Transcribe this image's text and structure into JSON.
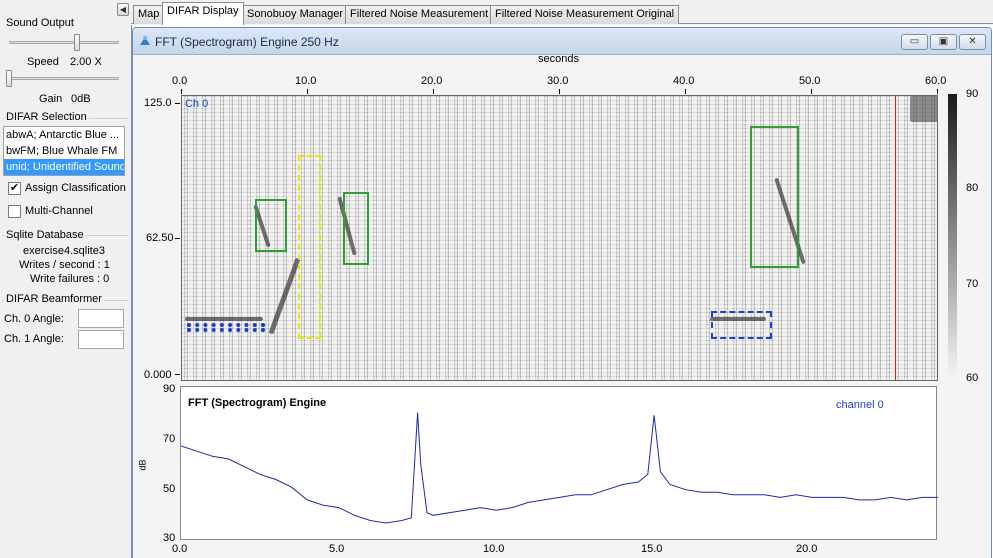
{
  "left_panel": {
    "sound_output": {
      "title": "Sound Output",
      "speed_label": "Speed",
      "speed_value": "2.00 X",
      "gain_label": "Gain",
      "gain_value": "0dB"
    },
    "difar_selection": {
      "title": "DIFAR Selection",
      "items": [
        {
          "label": "abwA; Antarctic Blue ..."
        },
        {
          "label": "bwFM; Blue Whale FM"
        },
        {
          "label": "unid; Unidentified Sound"
        }
      ],
      "selected_index": 2,
      "assign_classification": {
        "label": "Assign Classification",
        "checked": true
      },
      "multi_channel": {
        "label": "Multi-Channel",
        "checked": false
      }
    },
    "sqlite": {
      "title": "Sqlite Database",
      "file": "exercise4.sqlite3",
      "writes": "Writes / second : 1",
      "failures": "Write failures : 0"
    },
    "beamformer": {
      "title": "DIFAR Beamformer",
      "ch0_label": "Ch. 0 Angle:",
      "ch0_value": "",
      "ch1_label": "Ch. 1 Angle:",
      "ch1_value": ""
    }
  },
  "tabs": [
    {
      "label": "Map",
      "active": false
    },
    {
      "label": "DIFAR Display",
      "active": true
    },
    {
      "label": "Sonobuoy Manager",
      "active": false
    },
    {
      "label": "Filtered Noise Measurement",
      "active": false
    },
    {
      "label": "Filtered Noise Measurement Original",
      "active": false
    }
  ],
  "window": {
    "title": "FFT (Spectrogram) Engine 250 Hz",
    "buttons": {
      "minimize": "▭",
      "maximize": "▣",
      "close": "✕"
    }
  },
  "spectrogram": {
    "x_axis_title": "seconds",
    "x_ticks": [
      "0.0",
      "10.0",
      "20.0",
      "30.0",
      "40.0",
      "50.0",
      "60.0"
    ],
    "y_ticks": [
      "125.0",
      "62.50",
      "0.000"
    ],
    "channel_label": "Ch 0",
    "colorbar_ticks": [
      "90",
      "80",
      "70",
      "60"
    ],
    "cursor_time": 56.5,
    "selections": [
      {
        "t_start": 5.8,
        "t_end": 8.3,
        "f_low": 57,
        "f_high": 80,
        "color": "#2e9e35",
        "style": "solid"
      },
      {
        "t_start": 9.2,
        "t_end": 11.0,
        "f_low": 19,
        "f_high": 99,
        "color": "#e8e800",
        "style": "dashed"
      },
      {
        "t_start": 12.8,
        "t_end": 14.8,
        "f_low": 51,
        "f_high": 83,
        "color": "#2e9e35",
        "style": "solid"
      },
      {
        "t_start": 45.0,
        "t_end": 48.9,
        "f_low": 50,
        "f_high": 112,
        "color": "#2e9e35",
        "style": "solid"
      },
      {
        "t_start": 0.4,
        "t_end": 6.6,
        "f_low": 22,
        "f_high": 26,
        "color": "#1a3fd6",
        "style": "dotted"
      },
      {
        "t_start": 41.9,
        "t_end": 46.8,
        "f_low": 19,
        "f_high": 31,
        "color": "#1a3fd6",
        "style": "dashed"
      }
    ]
  },
  "spectrum": {
    "title": "FFT (Spectrogram) Engine",
    "channel_label": "channel 0",
    "y_label": "dB",
    "y_ticks": [
      "90",
      "70",
      "50",
      "30"
    ],
    "x_ticks": [
      "0.0",
      "5.0",
      "10.0",
      "15.0",
      "20.0"
    ],
    "line_color": "#1c2aa8"
  },
  "chart_data": {
    "type": "line",
    "title": "FFT (Spectrogram) Engine",
    "xlabel": "",
    "ylabel": "dB",
    "xlim": [
      0,
      24.0
    ],
    "ylim": [
      30,
      90
    ],
    "series": [
      {
        "name": "channel 0",
        "x": [
          0,
          0.5,
          1,
          1.5,
          2,
          2.5,
          3,
          3.5,
          4,
          4.5,
          5,
          5.5,
          6,
          6.5,
          7,
          7.3,
          7.5,
          7.6,
          7.8,
          8,
          8.5,
          9,
          9.5,
          10,
          10.5,
          11,
          11.5,
          12,
          12.5,
          13,
          13.5,
          14,
          14.5,
          14.8,
          15.0,
          15.2,
          15.5,
          16,
          16.5,
          17,
          17.5,
          18,
          18.5,
          19,
          19.5,
          20,
          20.5,
          21,
          21.5,
          22,
          22.5,
          23,
          23.5,
          24
        ],
        "y": [
          67,
          65,
          63,
          62,
          59,
          56,
          54,
          51,
          46,
          44,
          43,
          40,
          38,
          37,
          38,
          39,
          80,
          60,
          41,
          40,
          41,
          42,
          43,
          42,
          43,
          45,
          46,
          47,
          48,
          48,
          50,
          52,
          53,
          56,
          79,
          57,
          52,
          50,
          49,
          49,
          48,
          48,
          48,
          47,
          48,
          47,
          47,
          47,
          46,
          46,
          47,
          46,
          47,
          47
        ]
      }
    ]
  }
}
